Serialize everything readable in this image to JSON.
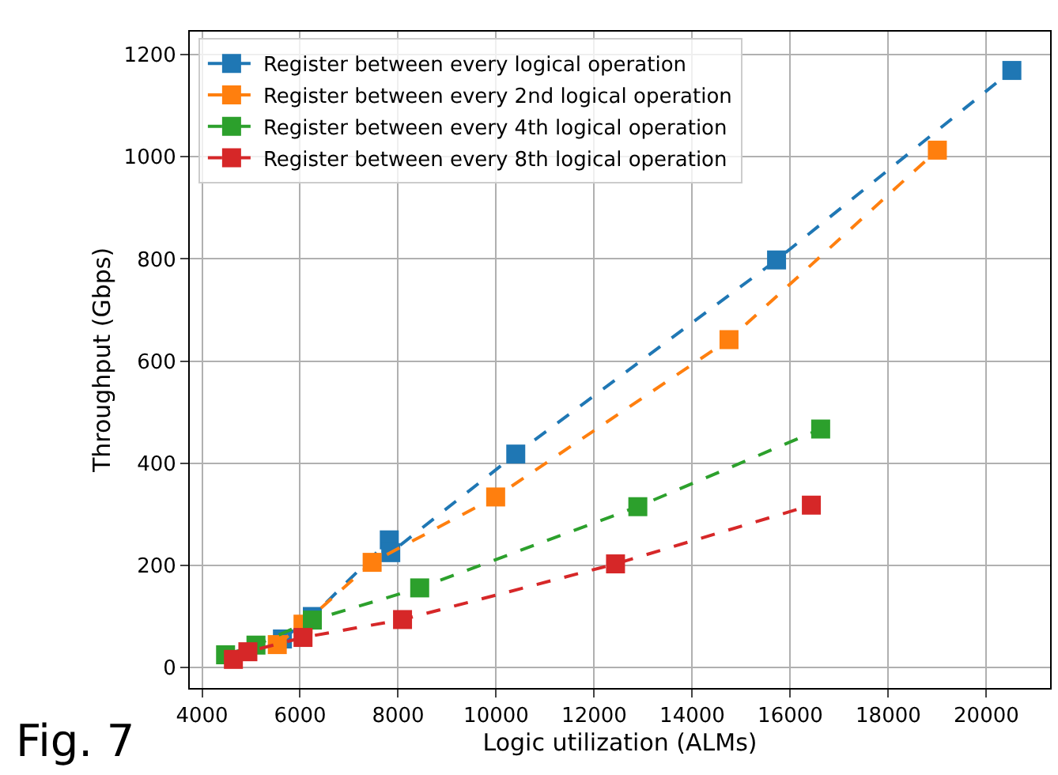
{
  "chart_data": {
    "type": "line",
    "xlabel": "Logic utilization (ALMs)",
    "ylabel": "Throughput (Gbps)",
    "xlim": [
      3750,
      21300
    ],
    "ylim": [
      -40,
      1245
    ],
    "xticks": [
      4000,
      6000,
      8000,
      10000,
      12000,
      14000,
      16000,
      18000,
      20000
    ],
    "yticks": [
      0,
      200,
      400,
      600,
      800,
      1000,
      1200
    ],
    "grid": true,
    "legend": "top left",
    "marker": "square",
    "line_style": "dashed",
    "annotations": [
      "Fig. 7"
    ],
    "series": [
      {
        "name": "Register between every logical operation",
        "color": "#1f77b4",
        "x": [
          5640,
          6250,
          7820,
          7850,
          10400,
          15720,
          20520
        ],
        "values": [
          56,
          100,
          250,
          225,
          418,
          798,
          1169
        ]
      },
      {
        "name": "Register between every 2nd logical operation",
        "color": "#ff7f0e",
        "x": [
          5535,
          6060,
          7470,
          9990,
          14750,
          19000
        ],
        "values": [
          45,
          85,
          206,
          334,
          642,
          1013
        ]
      },
      {
        "name": "Register between every 4th logical operation",
        "color": "#2ca02c",
        "x": [
          4480,
          5100,
          6250,
          8440,
          12890,
          16620
        ],
        "values": [
          25,
          44,
          93,
          156,
          315,
          467
        ]
      },
      {
        "name": "Register between every 8th logical operation",
        "color": "#d62728",
        "x": [
          4640,
          4935,
          6060,
          8090,
          12435,
          16430
        ],
        "values": [
          16,
          31,
          59,
          94,
          203,
          318
        ]
      }
    ]
  }
}
